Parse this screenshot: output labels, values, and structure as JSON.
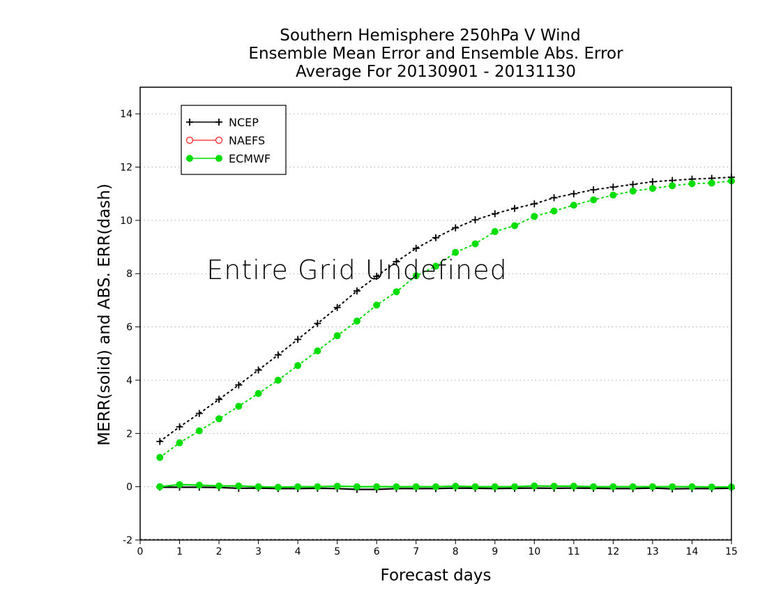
{
  "chart_data": {
    "type": "line",
    "title_lines": [
      "Southern Hemisphere 250hPa V Wind",
      "Ensemble Mean Error and Ensemble Abs. Error",
      "Average For 20130901 - 20131130"
    ],
    "xlabel": "Forecast days",
    "ylabel": "MERR(solid) and ABS. ERR(dash)",
    "xlim": [
      0,
      15
    ],
    "ylim": [
      -2,
      15
    ],
    "xticks": [
      "0",
      "1",
      "2",
      "3",
      "4",
      "5",
      "6",
      "7",
      "8",
      "9",
      "10",
      "11",
      "12",
      "13",
      "14",
      "15"
    ],
    "yticks": [
      "-2",
      "0",
      "2",
      "4",
      "6",
      "8",
      "10",
      "12",
      "14"
    ],
    "grid": "horizontal dotted",
    "legend_position": "top-left",
    "annotation": "Entire Grid Undefined",
    "x": [
      0.5,
      1,
      1.5,
      2,
      2.5,
      3,
      3.5,
      4,
      4.5,
      5,
      5.5,
      6,
      6.5,
      7,
      7.5,
      8,
      8.5,
      9,
      9.5,
      10,
      10.5,
      11,
      11.5,
      12,
      12.5,
      13,
      13.5,
      14,
      14.5,
      15
    ],
    "series": [
      {
        "name": "NCEP",
        "color": "#000000",
        "marker": "plus",
        "abs_err": [
          1.7,
          2.25,
          2.75,
          3.28,
          3.82,
          4.38,
          4.95,
          5.53,
          6.13,
          6.73,
          7.35,
          7.9,
          8.45,
          8.95,
          9.35,
          9.72,
          10.02,
          10.25,
          10.45,
          10.62,
          10.85,
          11.0,
          11.15,
          11.25,
          11.35,
          11.45,
          11.5,
          11.55,
          11.58,
          11.62
        ],
        "mean_err": [
          -0.02,
          -0.02,
          -0.02,
          -0.03,
          -0.06,
          -0.05,
          -0.07,
          -0.07,
          -0.06,
          -0.07,
          -0.1,
          -0.1,
          -0.07,
          -0.07,
          -0.07,
          -0.05,
          -0.06,
          -0.07,
          -0.06,
          -0.05,
          -0.06,
          -0.05,
          -0.06,
          -0.07,
          -0.07,
          -0.05,
          -0.08,
          -0.07,
          -0.07,
          -0.06
        ]
      },
      {
        "name": "NAEFS",
        "color": "#ff4040",
        "marker": "open-circle",
        "abs_err": [],
        "mean_err": []
      },
      {
        "name": "ECMWF",
        "color": "#00dd00",
        "marker": "filled-circle",
        "abs_err": [
          1.1,
          1.65,
          2.1,
          2.55,
          3.02,
          3.5,
          4.0,
          4.55,
          5.1,
          5.67,
          6.22,
          6.82,
          7.32,
          7.92,
          8.28,
          8.8,
          9.12,
          9.58,
          9.8,
          10.15,
          10.35,
          10.57,
          10.77,
          10.95,
          11.1,
          11.2,
          11.3,
          11.38,
          11.4,
          11.48
        ],
        "mean_err": [
          0.0,
          0.08,
          0.06,
          0.03,
          0.03,
          0.0,
          -0.02,
          0.0,
          0.0,
          0.02,
          0.0,
          0.0,
          0.0,
          0.0,
          0.0,
          0.02,
          0.0,
          0.0,
          0.0,
          0.03,
          0.02,
          0.02,
          0.0,
          0.0,
          0.0,
          0.0,
          0.0,
          0.0,
          -0.01,
          -0.01
        ]
      }
    ]
  }
}
